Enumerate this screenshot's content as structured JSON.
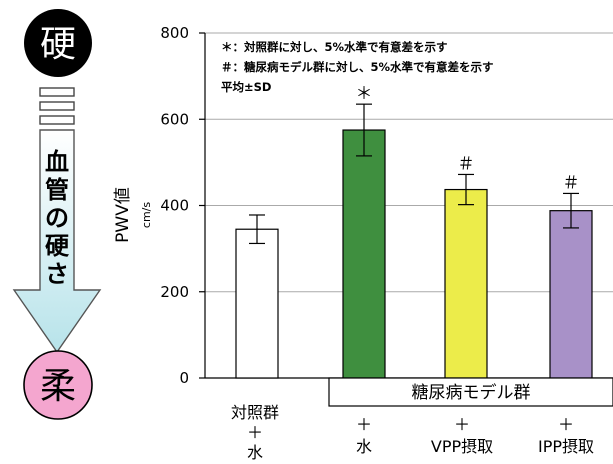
{
  "colors": {
    "hard_circle": "#000000",
    "soft_circle": "#f4a6cf",
    "arrow_fill_top": "#ffffff",
    "arrow_fill_bottom": "#b7e3ea",
    "bar_control": "#ffffff",
    "bar_water": "#3f8f3f",
    "bar_vpp": "#ecec4a",
    "bar_ipp": "#a891c8",
    "axis": "#000000"
  },
  "left_panel": {
    "hard_label": "硬",
    "soft_label": "柔",
    "arrow_label_chars": [
      "血",
      "管",
      "の",
      "硬",
      "さ"
    ]
  },
  "chart_data": {
    "type": "bar",
    "ylabel": "PWV値",
    "yunit": "cm/s",
    "ylim": [
      0,
      800
    ],
    "yticks": [
      0,
      200,
      400,
      600,
      800
    ],
    "grid": true,
    "notes": [
      "＊：対照群に対し、5%水準で有意差を示す",
      "＃：糖尿病モデル群に対し、5%水準で有意差を示す",
      "平均±SD"
    ],
    "group_label": "糖尿病モデル群",
    "categories": [
      {
        "lines": [
          "対照群",
          "＋",
          "水"
        ]
      },
      {
        "lines": [
          "＋",
          "水"
        ]
      },
      {
        "lines": [
          "＋",
          "VPP摂取"
        ]
      },
      {
        "lines": [
          "＋",
          "IPP摂取"
        ]
      }
    ],
    "values": [
      345,
      575,
      437,
      388
    ],
    "errors": [
      33,
      60,
      35,
      40
    ],
    "significance": [
      "",
      "＊",
      "＃",
      "＃"
    ]
  }
}
